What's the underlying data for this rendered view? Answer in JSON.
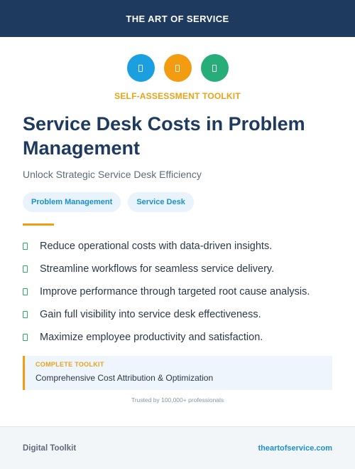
{
  "header": {
    "brand": "THE ART OF SERVICE"
  },
  "icons": [
    {
      "name": "document-icon",
      "color": "#1a9fe0"
    },
    {
      "name": "document-icon",
      "color": "#f39c12"
    },
    {
      "name": "document-icon",
      "color": "#27ae78"
    }
  ],
  "eyebrow": "SELF-ASSESSMENT TOOLKIT",
  "title": "Service Desk Costs in Problem Management",
  "subtitle": "Unlock Strategic Service Desk Efficiency",
  "tags": [
    "Problem Management",
    "Service Desk"
  ],
  "benefits": [
    "Reduce operational costs with data-driven insights.",
    "Streamline workflows for seamless service delivery.",
    "Improve performance through targeted root cause analysis.",
    "Gain full visibility into service desk effectiveness.",
    "Maximize employee productivity and satisfaction."
  ],
  "callout": {
    "label": "COMPLETE TOOLKIT",
    "text": "Comprehensive Cost Attribution & Optimization"
  },
  "trusted": "Trusted by 100,000+ professionals",
  "footer": {
    "left": "Digital Toolkit",
    "right": "theartofservice.com"
  },
  "colors": {
    "navy": "#1e3a5f",
    "accent": "#f39c12",
    "link": "#1a8fd1",
    "check": "#27ae60"
  }
}
